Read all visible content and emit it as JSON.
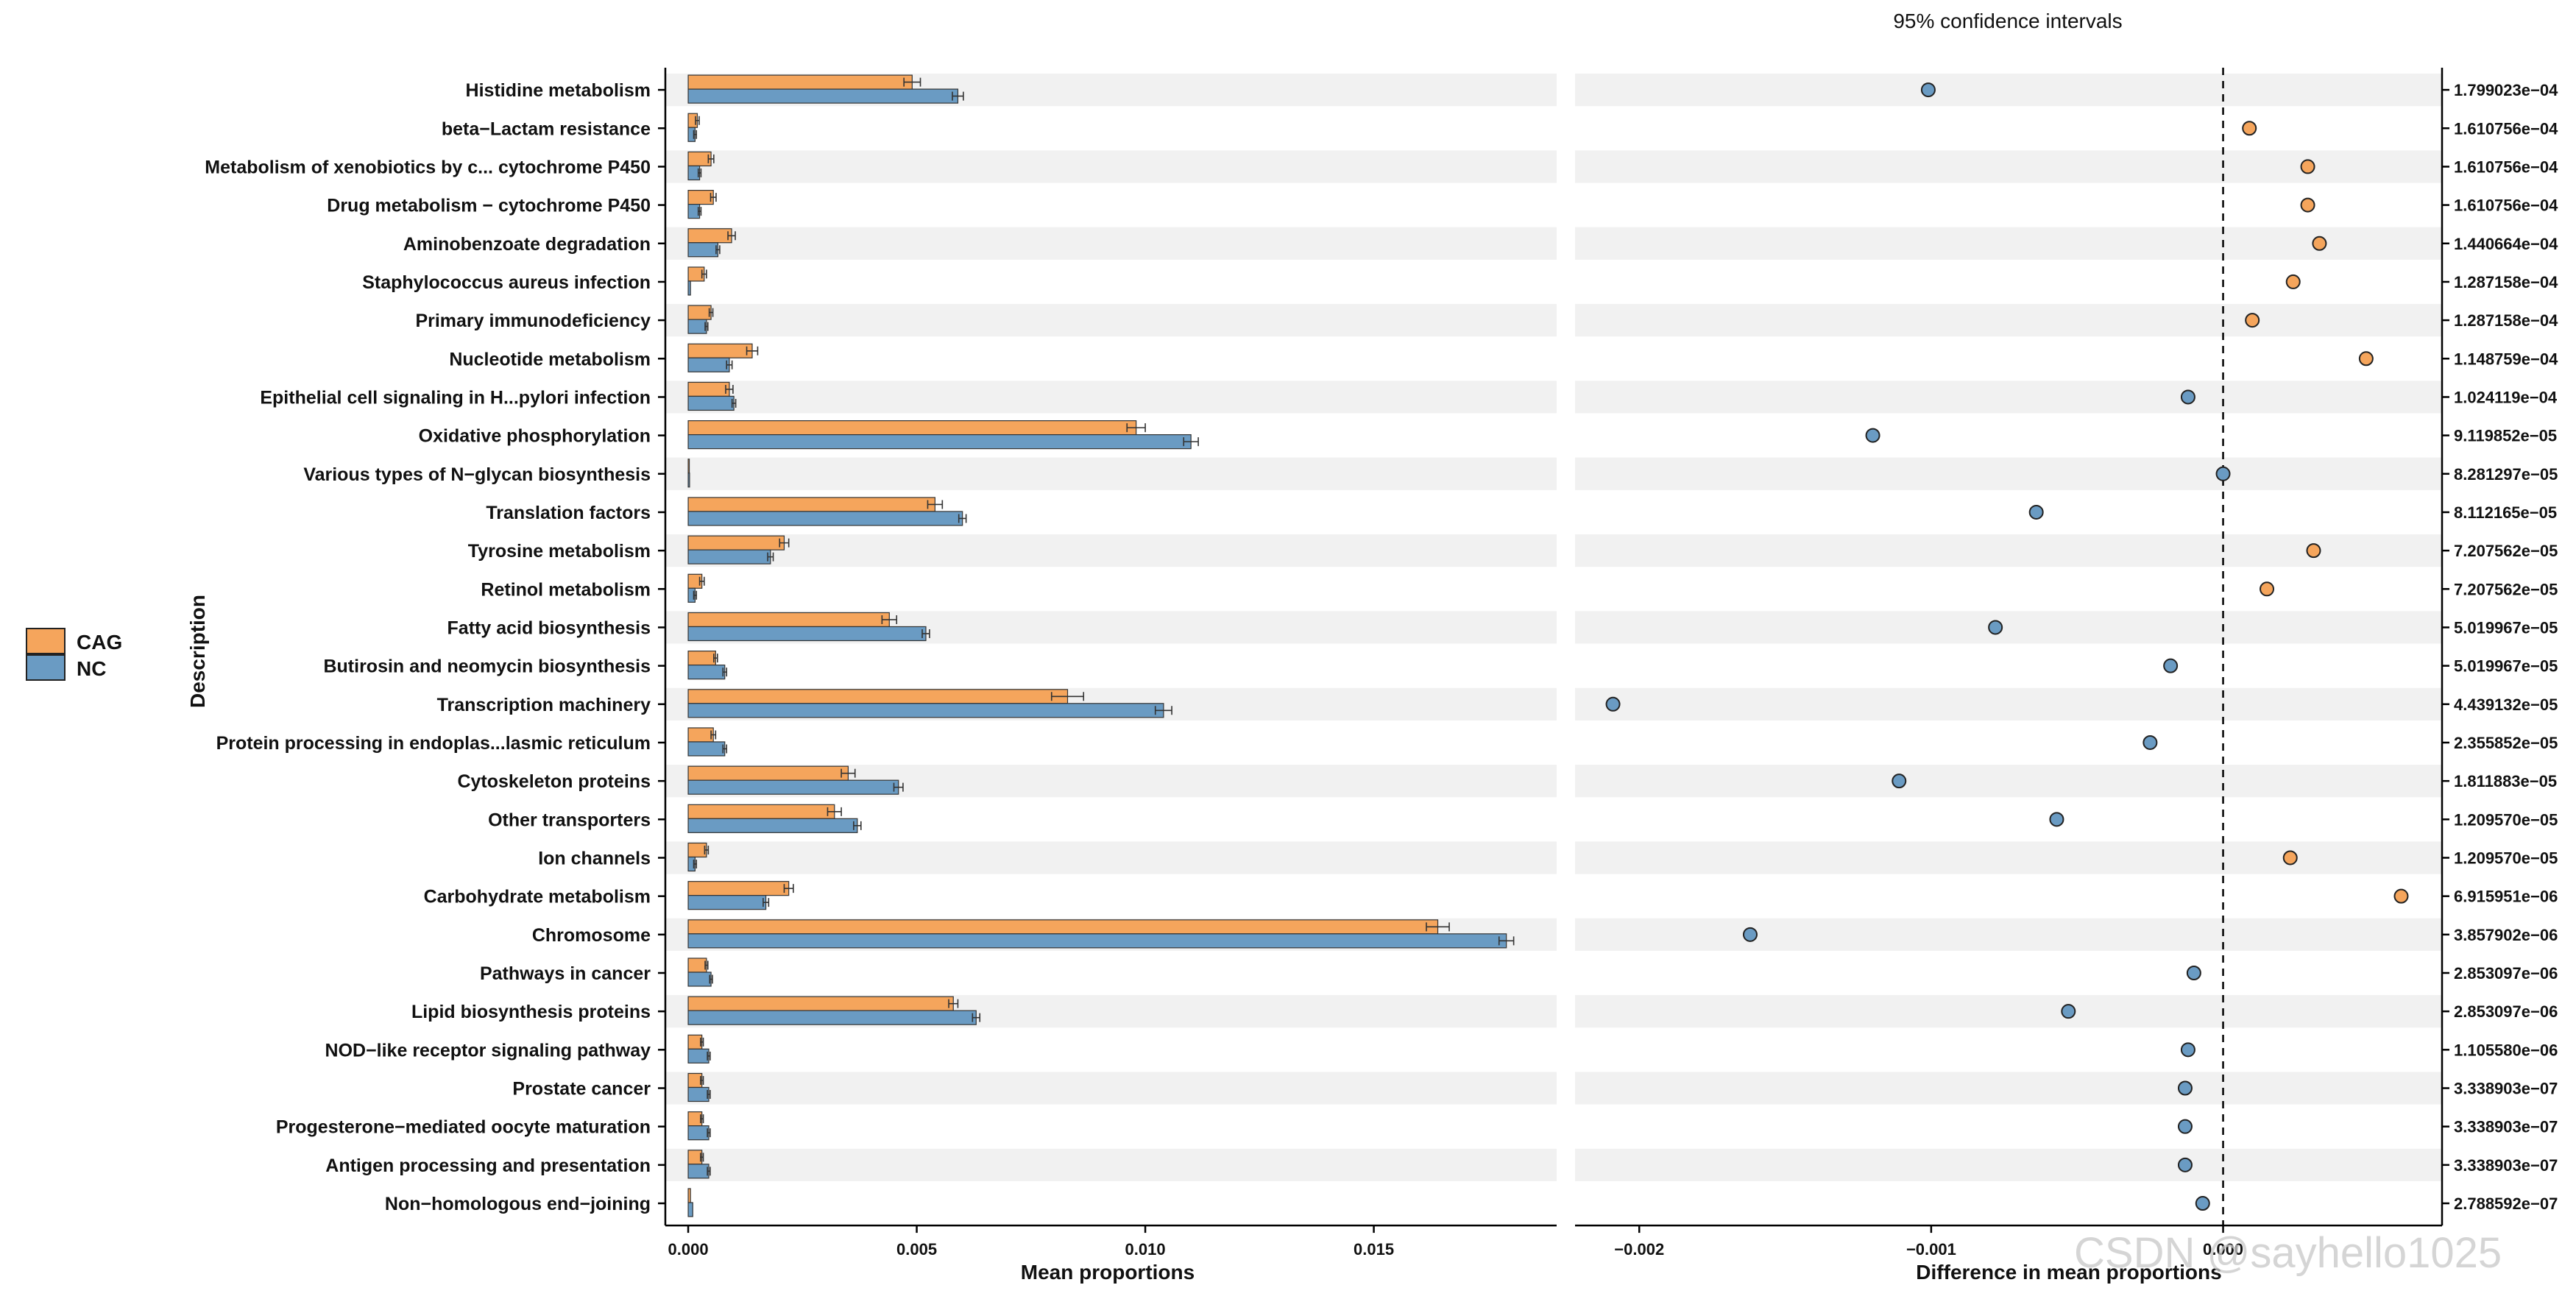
{
  "chart_data": {
    "type": "bar",
    "title": "95% confidence intervals",
    "ylabel": "Description",
    "left_panel": {
      "xlabel": "Mean proportions",
      "xlim": [
        -0.0005,
        0.019
      ],
      "ticks": [
        0.0,
        0.005,
        0.01,
        0.015
      ],
      "tick_labels": [
        "0.000",
        "0.005",
        "0.010",
        "0.015"
      ]
    },
    "right_panel": {
      "xlabel": "Difference in mean proportions",
      "xlim": [
        -0.00222,
        0.00075
      ],
      "ticks": [
        -0.002,
        -0.001,
        0.0
      ],
      "tick_labels": [
        "−0.002",
        "−0.001",
        "0.000"
      ],
      "reference_line": 0.0
    },
    "legend": {
      "entries": [
        "CAG",
        "NC"
      ],
      "position": "left"
    },
    "colors": {
      "CAG": "#F5A55C",
      "NC": "#6A9BC3",
      "band": "#F1F1F1"
    },
    "categories": [
      "Histidine metabolism",
      "beta−Lactam resistance",
      "Metabolism of xenobiotics by c... cytochrome P450",
      "Drug metabolism − cytochrome P450",
      "Aminobenzoate degradation",
      "Staphylococcus aureus infection",
      "Primary immunodeficiency",
      "Nucleotide metabolism",
      "Epithelial cell signaling in H...pylori infection",
      "Oxidative phosphorylation",
      "Various types of N−glycan biosynthesis",
      "Translation factors",
      "Tyrosine metabolism",
      "Retinol metabolism",
      "Fatty acid biosynthesis",
      "Butirosin and neomycin biosynthesis",
      "Transcription machinery",
      "Protein processing in endoplas...lasmic reticulum",
      "Cytoskeleton proteins",
      "Other transporters",
      "Ion channels",
      "Carbohydrate metabolism",
      "Chromosome",
      "Pathways in cancer",
      "Lipid biosynthesis proteins",
      "NOD−like receptor signaling pathway",
      "Prostate cancer",
      "Progesterone−mediated oocyte maturation",
      "Antigen processing and presentation",
      "Non−homologous end−joining"
    ],
    "series": [
      {
        "name": "CAG",
        "values": [
          0.0049,
          0.0002,
          0.0005,
          0.00055,
          0.00095,
          0.00035,
          0.0005,
          0.0014,
          0.0009,
          0.0098,
          2e-05,
          0.0054,
          0.0021,
          0.0003,
          0.0044,
          0.0006,
          0.0083,
          0.00055,
          0.0035,
          0.0032,
          0.0004,
          0.0022,
          0.0164,
          0.0004,
          0.0058,
          0.0003,
          0.0003,
          0.0003,
          0.0003,
          5e-05
        ],
        "errors": [
          0.00018,
          4e-05,
          6e-05,
          6e-05,
          8e-05,
          5e-05,
          4e-05,
          0.00012,
          8e-05,
          0.0002,
          0.0,
          0.00016,
          0.0001,
          5e-05,
          0.00016,
          4e-05,
          0.00035,
          5e-05,
          0.00015,
          0.00015,
          4e-05,
          0.0001,
          0.00025,
          3e-05,
          0.0001,
          3e-05,
          3e-05,
          3e-05,
          3e-05,
          0.0
        ]
      },
      {
        "name": "NC",
        "values": [
          0.0059,
          0.00015,
          0.00025,
          0.00025,
          0.00065,
          5e-05,
          0.0004,
          0.0009,
          0.001,
          0.011,
          3e-05,
          0.006,
          0.0018,
          0.00015,
          0.0052,
          0.0008,
          0.0104,
          0.0008,
          0.0046,
          0.0037,
          0.00015,
          0.0017,
          0.0179,
          0.0005,
          0.0063,
          0.00045,
          0.00045,
          0.00045,
          0.00045,
          0.0001
        ],
        "errors": [
          0.00012,
          3e-05,
          3e-05,
          3e-05,
          4e-05,
          0.0,
          3e-05,
          6e-05,
          4e-05,
          0.00016,
          0.0,
          8e-05,
          6e-05,
          3e-05,
          8e-05,
          4e-05,
          0.00018,
          4e-05,
          0.0001,
          8e-05,
          3e-05,
          6e-05,
          0.00016,
          3e-05,
          8e-05,
          3e-05,
          3e-05,
          3e-05,
          3e-05,
          0.0
        ]
      }
    ],
    "differences": [
      -0.00101,
      9e-05,
      0.00029,
      0.00029,
      0.00033,
      0.00024,
      0.0001,
      0.00049,
      -0.00012,
      -0.0012,
      0.0,
      -0.00064,
      0.00031,
      0.00015,
      -0.00078,
      -0.00018,
      -0.00209,
      -0.00025,
      -0.00111,
      -0.00057,
      0.00023,
      0.00061,
      -0.00162,
      -0.0001,
      -0.00053,
      -0.00012,
      -0.00013,
      -0.00013,
      -0.00013,
      -7e-05
    ],
    "difference_group": [
      "NC",
      "CAG",
      "CAG",
      "CAG",
      "CAG",
      "CAG",
      "CAG",
      "CAG",
      "NC",
      "NC",
      "NC",
      "NC",
      "CAG",
      "CAG",
      "NC",
      "NC",
      "NC",
      "NC",
      "NC",
      "NC",
      "CAG",
      "CAG",
      "NC",
      "NC",
      "NC",
      "NC",
      "NC",
      "NC",
      "NC",
      "NC"
    ],
    "p_values": [
      "1.799023e−04",
      "1.610756e−04",
      "1.610756e−04",
      "1.610756e−04",
      "1.440664e−04",
      "1.287158e−04",
      "1.287158e−04",
      "1.148759e−04",
      "1.024119e−04",
      "9.119852e−05",
      "8.281297e−05",
      "8.112165e−05",
      "7.207562e−05",
      "7.207562e−05",
      "5.019967e−05",
      "5.019967e−05",
      "4.439132e−05",
      "2.355852e−05",
      "1.811883e−05",
      "1.209570e−05",
      "1.209570e−05",
      "6.915951e−06",
      "3.857902e−06",
      "2.853097e−06",
      "2.853097e−06",
      "1.105580e−06",
      "3.338903e−07",
      "3.338903e−07",
      "3.338903e−07",
      "2.788592e−07"
    ]
  },
  "watermark": "CSDN @sayhello1025"
}
